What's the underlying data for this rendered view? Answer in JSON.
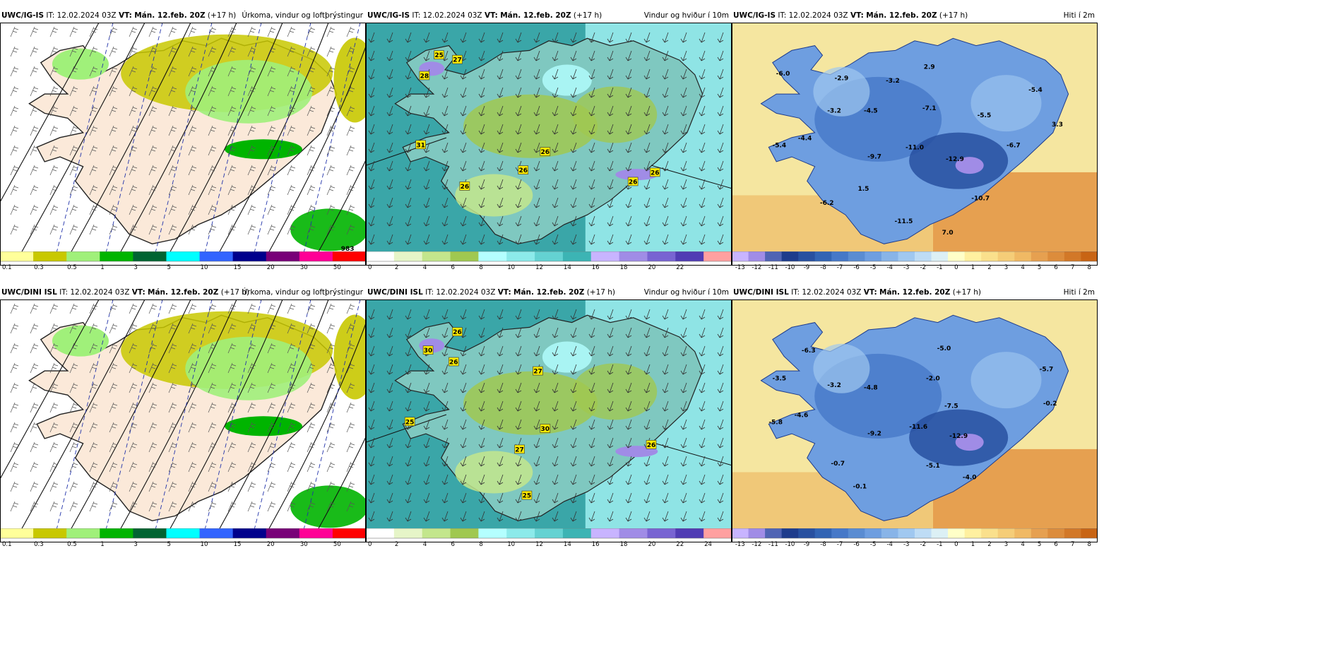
{
  "panels": [
    {
      "id": "r0c0",
      "model": "UWC/IG-IS",
      "it_label": "IT:",
      "it_value": "12.02.2024 03Z",
      "vt_label": "VT:",
      "vt_value": "Mán. 12.feb. 20Z",
      "lead": "(+17 h)",
      "product": "Úrkoma, vindur og loftþrýstingur",
      "type": "precip",
      "labels": [
        {
          "text": "983",
          "kind": "plain"
        }
      ],
      "colorbar_ticks": [
        "0.1",
        "0.3",
        "0.5",
        "1",
        "3",
        "5",
        "10",
        "15",
        "20",
        "30",
        "50"
      ]
    },
    {
      "id": "r0c1",
      "model": "UWC/IG-IS",
      "it_label": "IT:",
      "it_value": "12.02.2024 03Z",
      "vt_label": "VT:",
      "vt_value": "Mán. 12.feb. 20Z",
      "lead": "(+17 h)",
      "product": "Vindur og hviður í 10m",
      "type": "wind",
      "labels": [
        {
          "text": "25",
          "kind": "gust"
        },
        {
          "text": "27",
          "kind": "gust"
        },
        {
          "text": "28",
          "kind": "gust"
        },
        {
          "text": "31",
          "kind": "gust"
        },
        {
          "text": "26",
          "kind": "gust"
        },
        {
          "text": "26",
          "kind": "gust"
        },
        {
          "text": "26",
          "kind": "gust"
        },
        {
          "text": "26",
          "kind": "gust"
        },
        {
          "text": "26",
          "kind": "gust"
        }
      ],
      "colorbar_ticks": [
        "0",
        "2",
        "4",
        "6",
        "8",
        "10",
        "12",
        "14",
        "16",
        "18",
        "20",
        "22"
      ]
    },
    {
      "id": "r0c2",
      "model": "UWC/IG-IS",
      "it_label": "IT:",
      "it_value": "12.02.2024 03Z",
      "vt_label": "VT:",
      "vt_value": "Mán. 12.feb. 20Z",
      "lead": "(+17 h)",
      "product": "Hiti í 2m",
      "type": "temp",
      "labels": [
        {
          "text": "-6.0",
          "kind": "plain"
        },
        {
          "text": "-2.9",
          "kind": "plain"
        },
        {
          "text": "2.9",
          "kind": "plain"
        },
        {
          "text": "-3.2",
          "kind": "plain"
        },
        {
          "text": "-5.4",
          "kind": "plain"
        },
        {
          "text": "-3.2",
          "kind": "plain"
        },
        {
          "text": "-4.5",
          "kind": "plain"
        },
        {
          "text": "-7.1",
          "kind": "plain"
        },
        {
          "text": "-5.5",
          "kind": "plain"
        },
        {
          "text": "3.3",
          "kind": "plain"
        },
        {
          "text": "-4.4",
          "kind": "plain"
        },
        {
          "text": "-5.4",
          "kind": "plain"
        },
        {
          "text": "-9.7",
          "kind": "plain"
        },
        {
          "text": "-11.0",
          "kind": "plain"
        },
        {
          "text": "-12.9",
          "kind": "plain"
        },
        {
          "text": "-6.7",
          "kind": "plain"
        },
        {
          "text": "1.5",
          "kind": "plain"
        },
        {
          "text": "-6.2",
          "kind": "plain"
        },
        {
          "text": "-10.7",
          "kind": "plain"
        },
        {
          "text": "-11.5",
          "kind": "plain"
        },
        {
          "text": "7.0",
          "kind": "plain"
        }
      ],
      "colorbar_ticks": [
        "-13",
        "-12",
        "-11",
        "-10",
        "-9",
        "-8",
        "-7",
        "-6",
        "-5",
        "-4",
        "-3",
        "-2",
        "-1",
        "0",
        "1",
        "2",
        "3",
        "4",
        "5",
        "6",
        "7",
        "8"
      ]
    },
    {
      "id": "r1c0",
      "model": "UWC/DINI ISL",
      "it_label": "IT:",
      "it_value": "12.02.2024 03Z",
      "vt_label": "VT:",
      "vt_value": "Mán. 12.feb. 20Z",
      "lead": "(+17 h)",
      "product": "Úrkoma, vindur og loftþrýstingur",
      "type": "precip",
      "labels": [],
      "colorbar_ticks": [
        "0.1",
        "0.3",
        "0.5",
        "1",
        "3",
        "5",
        "10",
        "15",
        "20",
        "30",
        "50"
      ]
    },
    {
      "id": "r1c1",
      "model": "UWC/DINI ISL",
      "it_label": "IT:",
      "it_value": "12.02.2024 03Z",
      "vt_label": "VT:",
      "vt_value": "Mán. 12.feb. 20Z",
      "lead": "(+17 h)",
      "product": "Vindur og hviður í 10m",
      "type": "wind",
      "labels": [
        {
          "text": "26",
          "kind": "gust"
        },
        {
          "text": "30",
          "kind": "gust"
        },
        {
          "text": "26",
          "kind": "gust"
        },
        {
          "text": "27",
          "kind": "gust"
        },
        {
          "text": "25",
          "kind": "gust"
        },
        {
          "text": "30",
          "kind": "gust"
        },
        {
          "text": "27",
          "kind": "gust"
        },
        {
          "text": "26",
          "kind": "gust"
        },
        {
          "text": "25",
          "kind": "gust"
        }
      ],
      "colorbar_ticks": [
        "0",
        "2",
        "4",
        "6",
        "8",
        "10",
        "12",
        "14",
        "16",
        "18",
        "20",
        "22",
        "24"
      ]
    },
    {
      "id": "r1c2",
      "model": "UWC/DINI ISL",
      "it_label": "IT:",
      "it_value": "12.02.2024 03Z",
      "vt_label": "VT:",
      "vt_value": "Mán. 12.feb. 20Z",
      "lead": "(+17 h)",
      "product": "Hiti í 2m",
      "type": "temp",
      "labels": [
        {
          "text": "-6.3",
          "kind": "plain"
        },
        {
          "text": "-5.0",
          "kind": "plain"
        },
        {
          "text": "-3.5",
          "kind": "plain"
        },
        {
          "text": "-3.2",
          "kind": "plain"
        },
        {
          "text": "-4.8",
          "kind": "plain"
        },
        {
          "text": "-2.0",
          "kind": "plain"
        },
        {
          "text": "-5.7",
          "kind": "plain"
        },
        {
          "text": "-7.5",
          "kind": "plain"
        },
        {
          "text": "-0.2",
          "kind": "plain"
        },
        {
          "text": "-4.6",
          "kind": "plain"
        },
        {
          "text": "-5.8",
          "kind": "plain"
        },
        {
          "text": "-9.2",
          "kind": "plain"
        },
        {
          "text": "-11.6",
          "kind": "plain"
        },
        {
          "text": "-12.9",
          "kind": "plain"
        },
        {
          "text": "-0.7",
          "kind": "plain"
        },
        {
          "text": "-5.1",
          "kind": "plain"
        },
        {
          "text": "-4.0",
          "kind": "plain"
        },
        {
          "text": "-0.1",
          "kind": "plain"
        }
      ],
      "colorbar_ticks": [
        "-13",
        "-12",
        "-11",
        "-10",
        "-9",
        "-8",
        "-7",
        "-6",
        "-5",
        "-4",
        "-3",
        "-2",
        "-1",
        "0",
        "1",
        "2",
        "3",
        "4",
        "5",
        "6",
        "7",
        "8"
      ]
    }
  ],
  "colors": {
    "precip": [
      "#ffff9a",
      "#c8c800",
      "#a0f07a",
      "#00b400",
      "#006432",
      "#00ffff",
      "#3264ff",
      "#00008c",
      "#780078",
      "#ff0096",
      "#ff0000"
    ],
    "wind": [
      "#ffffff",
      "#e6f5c8",
      "#c3e68c",
      "#a0c850",
      "#b4ffff",
      "#8ceaea",
      "#64d2d2",
      "#3cb4b4",
      "#c8b4ff",
      "#a08ce6",
      "#7864d2",
      "#503cb4",
      "#ffa0a0"
    ],
    "temp": [
      "#c8b4ff",
      "#a08ce6",
      "#5064b4",
      "#1e3c8c",
      "#2850a0",
      "#3264b4",
      "#4678c8",
      "#5a8cd2",
      "#6e9ee0",
      "#88b4e8",
      "#a0c8f0",
      "#bedcf5",
      "#dcf0f5",
      "#ffffc8",
      "#fff0a0",
      "#fae08c",
      "#f5cd78",
      "#f0b964",
      "#e6a050",
      "#dc8c3c",
      "#d27828",
      "#c86414"
    ],
    "land_precip": "#fbe9d9",
    "land_wind": "#7fc8c0",
    "land_temp": "#6e9ee0"
  }
}
